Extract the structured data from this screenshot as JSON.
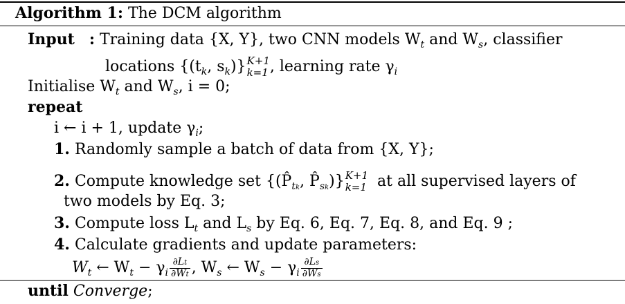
{
  "algorithm": {
    "label": "Algorithm 1:",
    "title": "The DCM algorithm"
  },
  "input": {
    "keyword": "Input",
    "colon": ":",
    "line1": "Training data {X, Y}, two CNN models W",
    "line1_and": " and W",
    "line1_tail": ", classifier",
    "line2_a": "locations {(t",
    "line2_b": ", s",
    "line2_c": ")}",
    "line2_sup": "K+1",
    "line2_sub": "k=1",
    "line2_d": ", learning rate γ",
    "sub_t": "t",
    "sub_s": "s",
    "sub_k": "k",
    "sub_i": "i"
  },
  "init": {
    "text_a": "Initialise W",
    "text_b": " and W",
    "text_c": ", i = 0;"
  },
  "repeat_kw": "repeat",
  "steps": {
    "update": "i ← i + 1, update γ",
    "update_tail": ";",
    "s1_num": "1.",
    "s1_text": "Randomly sample a batch of data from {X, Y};",
    "s2_num": "2.",
    "s2_text_a": "Compute knowledge set {(P̂",
    "s2_text_b": ", P̂",
    "s2_text_c": ")}",
    "s2_sub_tk": "t",
    "s2_sub_sk": "s",
    "s2_sup": "K+1",
    "s2_sub": "k=1",
    "s2_text_d": "at all supervised layers of",
    "s2_cont": "two models by Eq. 3;",
    "s3_num": "3.",
    "s3_text_a": "Compute loss L",
    "s3_text_b": " and L",
    "s3_text_c": " by  Eq. 6,  Eq. 7,  Eq. 8, and  Eq. 9 ;",
    "s4_num": "4.",
    "s4_text": "Calculate gradients and update parameters:",
    "eq_a": "W",
    "eq_b": " ← W",
    "eq_c": " − γ",
    "eq_frac1_num": "∂L",
    "eq_frac1_den": "∂W",
    "eq_d": ", W",
    "eq_e": " ← W",
    "eq_f": " − γ",
    "eq_frac2_num": "∂L",
    "eq_frac2_den": "∂W"
  },
  "until": {
    "keyword": "until",
    "condition": "Converge",
    "tail": ";"
  }
}
